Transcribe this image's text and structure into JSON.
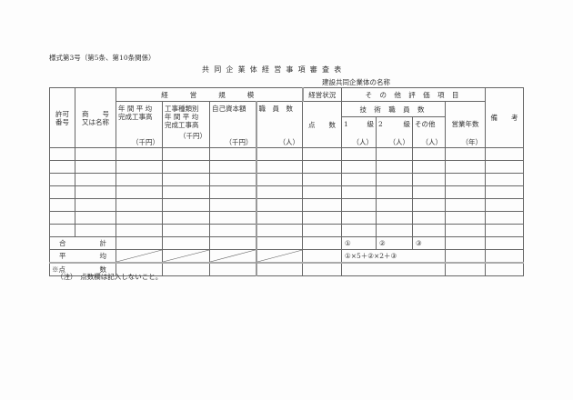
{
  "form_id": "様式第3号（第5条、第10条関係）",
  "title": "共同企業体経営事項審査表",
  "jv_name_label": "建設共同企業体の名称",
  "headers": {
    "permit_no": [
      "許可",
      "番号"
    ],
    "trade_name": [
      "商　　号",
      "又は名称"
    ],
    "management_scale": "経　　営　　規　　模",
    "avg_completed": [
      "年 間 平 均",
      "完成工事高"
    ],
    "avg_completed_unit": "（千円）",
    "by_type": [
      "工事種類別",
      "年 間 平 均",
      "完成工事高"
    ],
    "by_type_unit": "（千円）",
    "equity": "自己資本額",
    "equity_unit": "（千円）",
    "staff": "職　員　数",
    "staff_unit": "（人）",
    "management_status": "経営状況",
    "score": "点　　数",
    "other_items": "そ の 他 評 価 項 目",
    "tech_staff": "技 術 職 員 数",
    "grade1": [
      "1",
      "級"
    ],
    "grade2": [
      "2",
      "級"
    ],
    "other": "その他",
    "person_unit": "（人）",
    "years": "営業年数",
    "years_unit": "（年）",
    "remarks": "備　　考"
  },
  "data_rows": 7,
  "footer": {
    "total": [
      "合",
      "計"
    ],
    "average": [
      "平",
      "均"
    ],
    "points": [
      "※点",
      "数"
    ],
    "circle1": "①",
    "circle2": "②",
    "circle3": "③",
    "formula": "①×5＋②×2＋③"
  },
  "note": "（注）　点数欄は記入しないこと。"
}
